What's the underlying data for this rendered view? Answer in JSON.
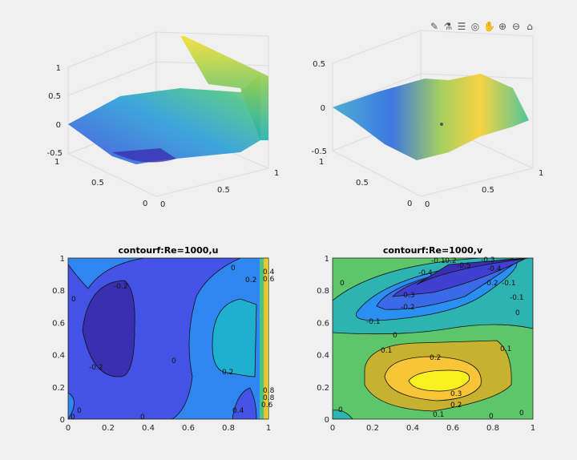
{
  "toolbar": {
    "items": [
      {
        "name": "brush-icon",
        "glyph": "✎"
      },
      {
        "name": "data-tips-icon",
        "glyph": "⚗"
      },
      {
        "name": "legend-icon",
        "glyph": "☰"
      },
      {
        "name": "rotate-3d-icon",
        "glyph": "◎"
      },
      {
        "name": "pan-hand-icon",
        "glyph": "✋"
      },
      {
        "name": "zoom-in-icon",
        "glyph": "⊕"
      },
      {
        "name": "zoom-out-icon",
        "glyph": "⊖"
      },
      {
        "name": "home-icon",
        "glyph": "⌂"
      }
    ]
  },
  "chart_data": [
    {
      "type": "surface3d",
      "title": "",
      "x_ticks": [
        "0",
        "0.5",
        "1"
      ],
      "y_ticks": [
        "0",
        "0.5",
        "1"
      ],
      "z_ticks": [
        "-0.5",
        "0",
        "0.5",
        "1"
      ],
      "zlim": [
        -0.5,
        1
      ],
      "colormap": "parula"
    },
    {
      "type": "surface3d",
      "title": "",
      "x_ticks": [
        "0",
        "0.5",
        "1"
      ],
      "y_ticks": [
        "0",
        "0.5",
        "1"
      ],
      "z_ticks": [
        "-0.5",
        "0",
        "0.5"
      ],
      "zlim": [
        -0.5,
        0.5
      ],
      "colormap": "parula"
    },
    {
      "type": "contour",
      "title": "contourf:Re=1000,u",
      "x_ticks": [
        "0",
        "0.2",
        "0.4",
        "0.6",
        "0.8",
        "1"
      ],
      "y_ticks": [
        "0",
        "0.2",
        "0.4",
        "0.6",
        "0.8",
        "1"
      ],
      "xlim": [
        0,
        1
      ],
      "ylim": [
        0,
        1
      ],
      "contour_labels": [
        "-0.2",
        "-0.2",
        "0",
        "0",
        "0",
        "0.2",
        "0.2",
        "0.4",
        "0.6",
        "0.8",
        "0.8",
        "0.6",
        "0.4",
        "0",
        "0",
        "0"
      ]
    },
    {
      "type": "contour",
      "title": "contourf:Re=1000,v",
      "x_ticks": [
        "0",
        "0.2",
        "0.4",
        "0.6",
        "0.8",
        "1"
      ],
      "y_ticks": [
        "0",
        "0.2",
        "0.4",
        "0.6",
        "0.8",
        "1"
      ],
      "xlim": [
        0,
        1
      ],
      "ylim": [
        0,
        1
      ],
      "contour_labels": [
        "-0.1",
        "-0.2",
        "-0.5",
        "-0.3",
        "-0.4",
        "-0.4",
        "-0.3",
        "-0.2",
        "-0.1",
        "0",
        "-0.2",
        "-0.1",
        "0",
        "-0.1",
        "0",
        "0.1",
        "0.1",
        "0.2",
        "0.3",
        "0.2",
        "0.1",
        "0",
        "0",
        "0"
      ]
    }
  ]
}
